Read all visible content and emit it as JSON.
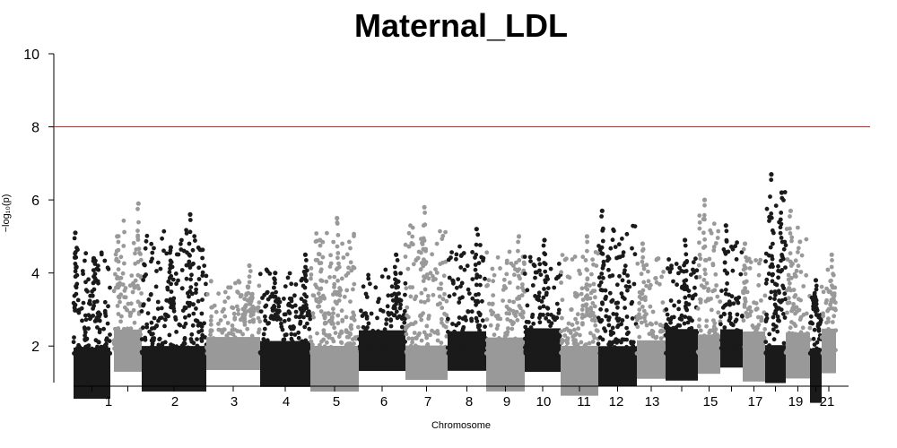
{
  "chart_data": {
    "type": "scatter",
    "title": "Maternal_LDL",
    "xlabel": "Chromosome",
    "ylabel": "−log₁₀(p)",
    "ylim": [
      1,
      10
    ],
    "yticks": [
      2,
      4,
      6,
      8,
      10
    ],
    "threshold": {
      "value": 8,
      "color": "#e41a1c"
    },
    "colors": [
      "#1a1a1a",
      "#999999"
    ],
    "chromosomes": [
      {
        "chr": "1",
        "label": "1",
        "color": "#1a1a1a",
        "max": 5.1,
        "peaks": [
          {
            "pos": 0.05,
            "y": 5.1
          },
          {
            "pos": 0.55,
            "y": 4.4
          }
        ]
      },
      {
        "chr": "2",
        "label": "2",
        "color": "#999999",
        "max": 5.9,
        "peaks": [
          {
            "pos": 0.12,
            "y": 5.0
          },
          {
            "pos": 0.88,
            "y": 5.9
          }
        ]
      },
      {
        "chr": "3",
        "label": "3",
        "color": "#1a1a1a",
        "max": 5.6,
        "peaks": [
          {
            "pos": 0.75,
            "y": 5.6
          },
          {
            "pos": 0.45,
            "y": 4.7
          }
        ]
      },
      {
        "chr": "4",
        "label": "4",
        "color": "#999999",
        "max": 4.2,
        "peaks": [
          {
            "pos": 0.8,
            "y": 4.2
          }
        ]
      },
      {
        "chr": "5",
        "label": "5",
        "color": "#1a1a1a",
        "max": 4.5,
        "peaks": [
          {
            "pos": 0.9,
            "y": 4.5
          },
          {
            "pos": 0.3,
            "y": 4.0
          }
        ]
      },
      {
        "chr": "6",
        "label": "6",
        "color": "#999999",
        "max": 5.5,
        "peaks": [
          {
            "pos": 0.55,
            "y": 5.5
          },
          {
            "pos": 0.2,
            "y": 4.9
          }
        ]
      },
      {
        "chr": "7",
        "label": "7",
        "color": "#1a1a1a",
        "max": 4.5,
        "peaks": [
          {
            "pos": 0.8,
            "y": 4.5
          }
        ]
      },
      {
        "chr": "8",
        "label": "8",
        "color": "#999999",
        "max": 5.8,
        "peaks": [
          {
            "pos": 0.45,
            "y": 5.8
          }
        ]
      },
      {
        "chr": "9",
        "label": "9",
        "color": "#1a1a1a",
        "max": 5.2,
        "peaks": [
          {
            "pos": 0.75,
            "y": 5.2
          }
        ]
      },
      {
        "chr": "10",
        "label": "10",
        "color": "#999999",
        "max": 5.0,
        "peaks": [
          {
            "pos": 0.85,
            "y": 5.0
          }
        ]
      },
      {
        "chr": "11",
        "label": "11",
        "color": "#1a1a1a",
        "max": 4.9,
        "peaks": [
          {
            "pos": 0.55,
            "y": 4.9
          }
        ]
      },
      {
        "chr": "12",
        "label": "12",
        "color": "#999999",
        "max": 5.0,
        "peaks": [
          {
            "pos": 0.7,
            "y": 5.0
          }
        ]
      },
      {
        "chr": "13",
        "label": "13",
        "color": "#1a1a1a",
        "max": 5.7,
        "peaks": [
          {
            "pos": 0.1,
            "y": 5.7
          }
        ]
      },
      {
        "chr": "14",
        "label": "",
        "color": "#999999",
        "max": 4.8,
        "peaks": [
          {
            "pos": 0.2,
            "y": 4.8
          }
        ]
      },
      {
        "chr": "15",
        "label": "15",
        "color": "#1a1a1a",
        "max": 4.9,
        "peaks": [
          {
            "pos": 0.6,
            "y": 4.9
          }
        ]
      },
      {
        "chr": "16",
        "label": "",
        "color": "#999999",
        "max": 6.0,
        "peaks": [
          {
            "pos": 0.3,
            "y": 6.0
          }
        ]
      },
      {
        "chr": "17",
        "label": "17",
        "color": "#1a1a1a",
        "max": 5.3,
        "peaks": [
          {
            "pos": 0.25,
            "y": 5.3
          }
        ]
      },
      {
        "chr": "18",
        "label": "",
        "color": "#999999",
        "max": 4.8,
        "peaks": [
          {
            "pos": 0.1,
            "y": 4.8
          }
        ]
      },
      {
        "chr": "19",
        "label": "19",
        "color": "#1a1a1a",
        "max": 6.7,
        "peaks": [
          {
            "pos": 0.3,
            "y": 6.7
          },
          {
            "pos": 0.8,
            "y": 6.2
          }
        ]
      },
      {
        "chr": "20",
        "label": "",
        "color": "#999999",
        "max": 5.7,
        "peaks": [
          {
            "pos": 0.2,
            "y": 5.7
          }
        ]
      },
      {
        "chr": "21",
        "label": "21",
        "color": "#1a1a1a",
        "max": 3.8,
        "peaks": [
          {
            "pos": 0.5,
            "y": 3.8
          }
        ]
      },
      {
        "chr": "22",
        "label": "",
        "color": "#999999",
        "max": 4.5,
        "peaks": [
          {
            "pos": 0.7,
            "y": 4.5
          }
        ]
      }
    ]
  }
}
